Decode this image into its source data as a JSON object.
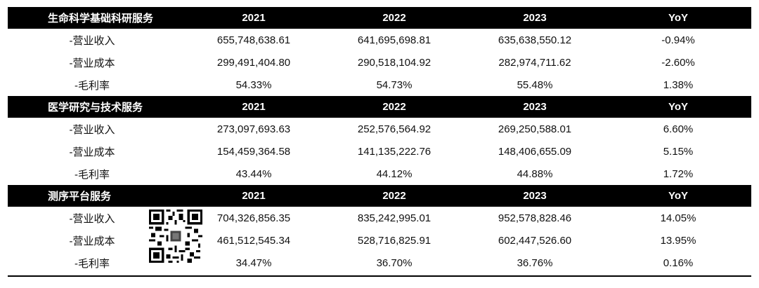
{
  "sections": [
    {
      "title": "生命科学基础科研服务",
      "years": [
        "2021",
        "2022",
        "2023"
      ],
      "yoy_label": "YoY",
      "rows": [
        {
          "label": "-营业收入",
          "values": [
            "655,748,638.61",
            "641,695,698.81",
            "635,638,550.12"
          ],
          "yoy": "-0.94%"
        },
        {
          "label": "-营业成本",
          "values": [
            "299,491,404.80",
            "290,518,104.92",
            "282,974,711.62"
          ],
          "yoy": "-2.60%"
        },
        {
          "label": "-毛利率",
          "values": [
            "54.33%",
            "54.73%",
            "55.48%"
          ],
          "yoy": "1.38%"
        }
      ]
    },
    {
      "title": "医学研究与技术服务",
      "years": [
        "2021",
        "2022",
        "2023"
      ],
      "yoy_label": "YoY",
      "rows": [
        {
          "label": "-营业收入",
          "values": [
            "273,097,693.63",
            "252,576,564.92",
            "269,250,588.01"
          ],
          "yoy": "6.60%"
        },
        {
          "label": "-营业成本",
          "values": [
            "154,459,364.58",
            "141,135,222.76",
            "148,406,655.09"
          ],
          "yoy": "5.15%"
        },
        {
          "label": "-毛利率",
          "values": [
            "43.44%",
            "44.12%",
            "44.88%"
          ],
          "yoy": "1.72%"
        }
      ]
    },
    {
      "title": "测序平台服务",
      "years": [
        "2021",
        "2022",
        "2023"
      ],
      "yoy_label": "YoY",
      "rows": [
        {
          "label": "-营业收入",
          "values": [
            "704,326,856.35",
            "835,242,995.01",
            "952,578,828.46"
          ],
          "yoy": "14.05%"
        },
        {
          "label": "-营业成本",
          "values": [
            "461,512,545.34",
            "528,716,825.91",
            "602,447,526.60"
          ],
          "yoy": "13.95%"
        },
        {
          "label": "-毛利率",
          "values": [
            "34.47%",
            "36.70%",
            "36.76%"
          ],
          "yoy": "0.16%"
        }
      ]
    }
  ],
  "colors": {
    "header_bg": "#000000",
    "header_text": "#ffffff",
    "body_text": "#111111"
  },
  "icons": {
    "qr_code": "qr-code-icon"
  }
}
